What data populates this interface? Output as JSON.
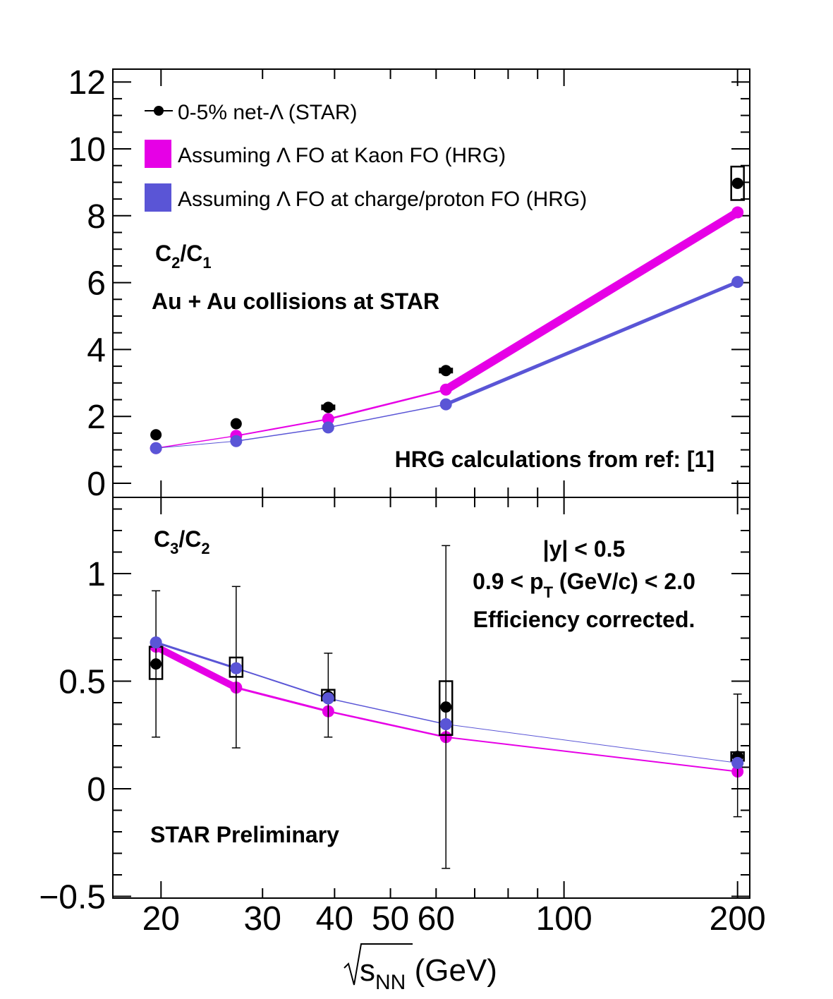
{
  "chart_data": [
    {
      "type": "scatter",
      "panel": "top",
      "ylabel": "C₂/C₁",
      "x_scale": "log",
      "xlim": [
        16.5,
        210
      ],
      "ylim": [
        -0.5,
        12.5
      ],
      "yticks": [
        0,
        2,
        4,
        6,
        8,
        10,
        12
      ],
      "annotations": [
        "Au + Au collisions at STAR",
        "HRG calculations from ref: [1]"
      ],
      "legend": {
        "placement": "top-left",
        "entries": [
          "0-5% net-Λ (STAR)",
          "Assuming Λ FO at Kaon FO (HRG)",
          "Assuming Λ FO at charge/proton FO (HRG)"
        ]
      },
      "series": [
        {
          "name": "0-5% net-Λ (STAR)",
          "color": "#000000",
          "kind": "data",
          "x": [
            19.6,
            27,
            39,
            62.4,
            200
          ],
          "y": [
            1.45,
            1.78,
            2.27,
            3.37,
            8.97
          ],
          "sys": [
            0.0,
            0.0,
            0.07,
            0.12,
            0.5
          ]
        },
        {
          "name": "Assuming Λ FO at Kaon FO (HRG)",
          "color": "#e600e6",
          "kind": "model",
          "x": [
            19.6,
            27,
            39,
            62.4,
            200
          ],
          "y": [
            1.05,
            1.42,
            1.92,
            2.8,
            8.1
          ]
        },
        {
          "name": "Assuming Λ FO at charge/proton FO (HRG)",
          "color": "#5a55d6",
          "kind": "model",
          "x": [
            19.6,
            27,
            39,
            62.4,
            200
          ],
          "y": [
            1.05,
            1.26,
            1.67,
            2.36,
            6.02
          ]
        }
      ]
    },
    {
      "type": "scatter",
      "panel": "bottom",
      "ylabel": "C₃/C₂",
      "xlabel": "√sNN (GeV)",
      "x_scale": "log",
      "xlim": [
        16.5,
        210
      ],
      "ylim": [
        -0.5,
        1.35
      ],
      "yticks": [
        -0.5,
        0,
        0.5,
        1
      ],
      "xticks": [
        20,
        30,
        40,
        50,
        60,
        100,
        200
      ],
      "annotations": [
        "|y| < 0.5",
        "0.9 < pT (GeV/c) < 2.0",
        "Efficiency corrected.",
        "STAR Preliminary"
      ],
      "series": [
        {
          "name": "0-5% net-Λ (STAR)",
          "color": "#000000",
          "kind": "data",
          "x": [
            19.6,
            27,
            39,
            62.4,
            200
          ],
          "y": [
            0.58,
            0.56,
            0.43,
            0.38,
            0.15
          ],
          "stat_low": [
            0.24,
            0.19,
            0.24,
            -0.37,
            -0.13
          ],
          "stat_high": [
            0.92,
            0.94,
            0.63,
            1.13,
            0.44
          ],
          "sys_low": [
            0.51,
            0.52,
            0.41,
            0.25,
            0.13
          ],
          "sys_high": [
            0.66,
            0.61,
            0.46,
            0.5,
            0.17
          ]
        },
        {
          "name": "Assuming Λ FO at Kaon FO (HRG)",
          "color": "#e600e6",
          "kind": "model",
          "x": [
            19.6,
            27,
            39,
            62.4,
            200
          ],
          "y": [
            0.66,
            0.47,
            0.36,
            0.24,
            0.08
          ]
        },
        {
          "name": "Assuming Λ FO at charge/proton FO (HRG)",
          "color": "#5a55d6",
          "kind": "model",
          "x": [
            19.6,
            27,
            39,
            62.4,
            200
          ],
          "y": [
            0.68,
            0.56,
            0.42,
            0.3,
            0.12
          ]
        }
      ]
    }
  ],
  "text": {
    "top_ylabel_main": "C",
    "top_ylabel_sub1": "2",
    "top_ylabel_slash": "/C",
    "top_ylabel_sub2": "1",
    "bot_ylabel_main": "C",
    "bot_ylabel_sub1": "3",
    "bot_ylabel_slash": "/C",
    "bot_ylabel_sub2": "2",
    "collisions": "Au + Au collisions at STAR",
    "hrg_ref": "HRG calculations from ref: [1]",
    "rapidity": "|y| < 0.5",
    "pt_pre": "0.9 < p",
    "pt_sub": "T",
    "pt_post": " (GeV/c) < 2.0",
    "efficiency": "Efficiency corrected.",
    "preliminary": "STAR Preliminary",
    "xlabel_s": "s",
    "xlabel_sub": "NN",
    "xlabel_unit": " (GeV)",
    "legend_1": "0-5% net-Λ (STAR)",
    "legend_2": "Assuming Λ FO at Kaon FO (HRG)",
    "legend_3": "Assuming Λ FO at charge/proton FO (HRG)"
  }
}
